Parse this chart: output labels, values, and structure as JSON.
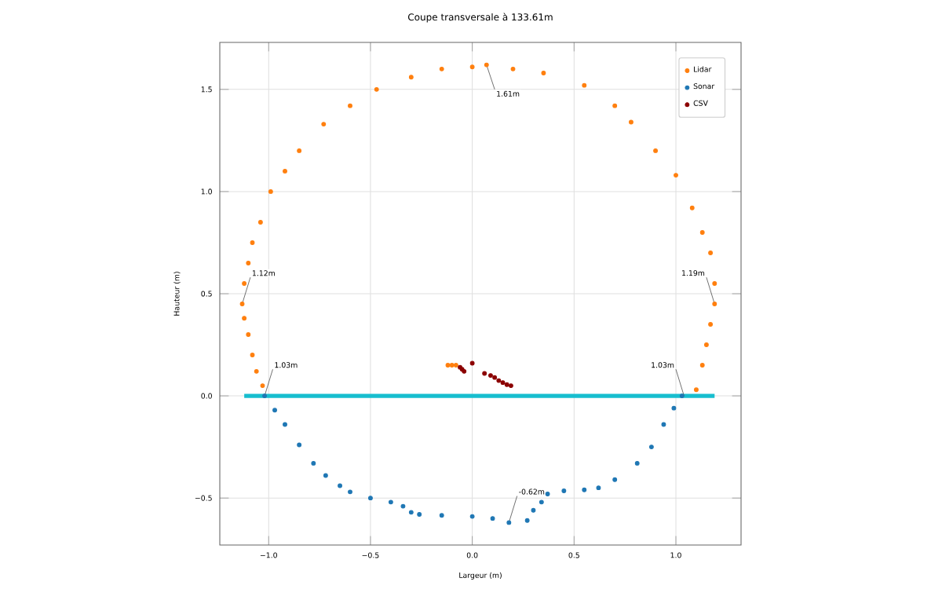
{
  "chart_data": {
    "type": "scatter",
    "title": "Coupe transversale à 133.61m",
    "xlabel": "Largeur (m)",
    "ylabel": "Hauteur (m)",
    "xlim": [
      -1.24,
      1.32
    ],
    "ylim": [
      -0.73,
      1.73
    ],
    "xticks": [
      {
        "value": -1.0,
        "label": "−1.0"
      },
      {
        "value": -0.5,
        "label": "−0.5"
      },
      {
        "value": 0.0,
        "label": "0.0"
      },
      {
        "value": 0.5,
        "label": "0.5"
      },
      {
        "value": 1.0,
        "label": "1.0"
      }
    ],
    "yticks": [
      {
        "value": -0.5,
        "label": "−0.5"
      },
      {
        "value": 0.0,
        "label": "0.0"
      },
      {
        "value": 0.5,
        "label": "0.5"
      },
      {
        "value": 1.0,
        "label": "1.0"
      },
      {
        "value": 1.5,
        "label": "1.5"
      }
    ],
    "grid": true,
    "legend": "top right",
    "series": [
      {
        "name": "Lidar",
        "color": "#ff7f0e",
        "x": [
          -1.03,
          -1.06,
          -1.08,
          -1.1,
          -1.12,
          -1.13,
          -1.12,
          -1.1,
          -1.08,
          -1.04,
          -0.99,
          -0.92,
          -0.85,
          -0.73,
          -0.6,
          -0.47,
          -0.3,
          -0.15,
          0.0,
          0.07,
          0.2,
          0.35,
          0.55,
          0.7,
          0.78,
          0.9,
          1.0,
          1.08,
          1.13,
          1.17,
          1.19,
          1.19,
          1.17,
          1.15,
          1.13,
          1.1,
          -0.12,
          -0.1,
          -0.08
        ],
        "values": [
          0.05,
          0.12,
          0.2,
          0.3,
          0.38,
          0.45,
          0.55,
          0.65,
          0.75,
          0.85,
          1.0,
          1.1,
          1.2,
          1.33,
          1.42,
          1.5,
          1.56,
          1.6,
          1.61,
          1.62,
          1.6,
          1.58,
          1.52,
          1.42,
          1.34,
          1.2,
          1.08,
          0.92,
          0.8,
          0.7,
          0.55,
          0.45,
          0.35,
          0.25,
          0.15,
          0.03,
          0.15,
          0.15,
          0.15
        ]
      },
      {
        "name": "Sonar",
        "color": "#1f77b4",
        "x": [
          -1.02,
          -0.97,
          -0.92,
          -0.85,
          -0.78,
          -0.72,
          -0.65,
          -0.6,
          -0.5,
          -0.4,
          -0.34,
          -0.3,
          -0.26,
          -0.15,
          0.0,
          0.1,
          0.18,
          0.27,
          0.3,
          0.34,
          0.37,
          0.45,
          0.55,
          0.62,
          0.7,
          0.81,
          0.88,
          0.94,
          0.99,
          1.03
        ],
        "values": [
          0.0,
          -0.07,
          -0.14,
          -0.24,
          -0.33,
          -0.39,
          -0.44,
          -0.47,
          -0.5,
          -0.52,
          -0.54,
          -0.57,
          -0.58,
          -0.585,
          -0.59,
          -0.6,
          -0.62,
          -0.61,
          -0.56,
          -0.52,
          -0.48,
          -0.465,
          -0.46,
          -0.45,
          -0.41,
          -0.33,
          -0.25,
          -0.14,
          -0.06,
          0.0
        ]
      },
      {
        "name": "CSV",
        "color": "#8b0000",
        "x": [
          -0.06,
          -0.05,
          -0.04,
          0.0,
          0.06,
          0.09,
          0.11,
          0.13,
          0.15,
          0.17,
          0.19
        ],
        "values": [
          0.14,
          0.13,
          0.12,
          0.16,
          0.11,
          0.1,
          0.09,
          0.075,
          0.065,
          0.055,
          0.05
        ]
      },
      {
        "type": "line",
        "color": "#17becf",
        "x": [
          -1.12,
          1.19
        ],
        "values": [
          0.0,
          0.0
        ]
      }
    ],
    "annotations": [
      {
        "text": "1.61m",
        "x": 0.07,
        "y": 1.62
      },
      {
        "text": "1.12m",
        "x": -1.13,
        "y": 0.45
      },
      {
        "text": "1.19m",
        "x": 1.19,
        "y": 0.45
      },
      {
        "text": "1.03m",
        "x": -1.02,
        "y": 0.0
      },
      {
        "text": "1.03m",
        "x": 1.04,
        "y": 0.0
      },
      {
        "text": "-0.62m",
        "x": 0.18,
        "y": -0.62
      }
    ]
  }
}
